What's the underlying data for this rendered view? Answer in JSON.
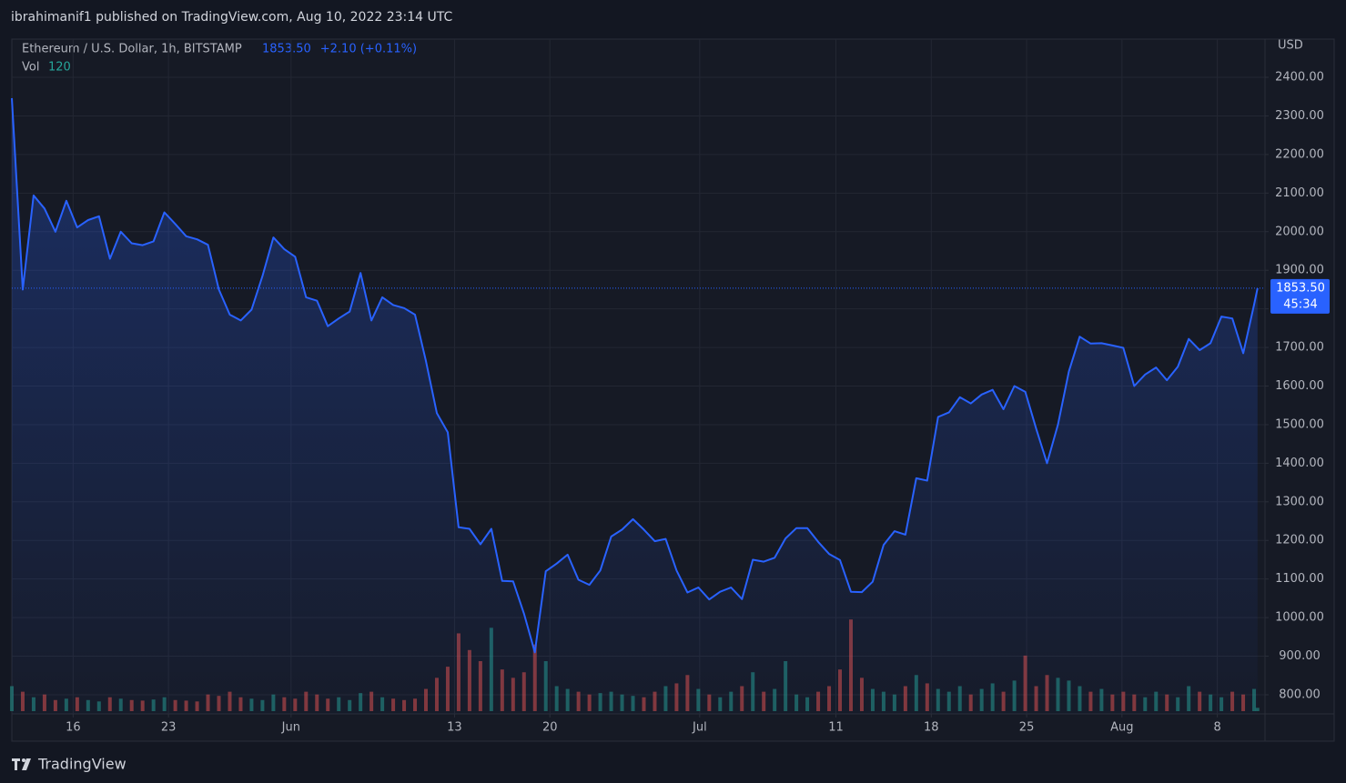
{
  "header": {
    "publisher": "ibrahimanif1 published on TradingView.com, Aug 10, 2022 23:14 UTC"
  },
  "footer": {
    "brand": "TradingView"
  },
  "chart_data": {
    "type": "area",
    "title": "Ethereum / U.S. Dollar, 1h, BITSTAMP",
    "legend_price": "1853.50",
    "legend_change": "+2.10 (+0.11%)",
    "volume_label": "Vol",
    "currency": "USD",
    "last_label": "1853.50",
    "countdown": "45:34",
    "color": "#2962ff",
    "grid": true,
    "x": [
      131.5,
      132.3,
      133.1,
      133.9,
      134.7,
      135.5,
      136.3,
      137.1,
      137.9,
      138.7,
      139.5,
      140.3,
      141.1,
      141.9,
      142.7,
      143.5,
      144.3,
      145.1,
      145.9,
      146.7,
      147.5,
      148.3,
      149.1,
      149.9,
      150.7,
      151.5,
      152.3,
      153.1,
      153.9,
      154.7,
      155.5,
      156.3,
      157.1,
      157.9,
      158.7,
      159.5,
      160.3,
      161.1,
      161.9,
      162.7,
      163.5,
      164.3,
      165.1,
      165.9,
      166.7,
      167.5,
      168.3,
      169.1,
      169.9,
      170.7,
      171.5,
      172.3,
      173.1,
      173.9,
      174.7,
      175.5,
      176.3,
      177.1,
      177.9,
      178.7,
      179.5,
      180.3,
      181.1,
      181.9,
      182.7,
      183.5,
      184.3,
      185.1,
      185.9,
      186.7,
      187.5,
      188.3,
      189.1,
      189.9,
      190.7,
      191.5,
      192.3,
      193.1,
      193.9,
      194.7,
      195.5,
      196.3,
      197.1,
      197.9,
      198.7,
      199.5,
      200.3,
      201.1,
      201.9,
      202.7,
      203.5,
      204.3,
      205.1,
      205.9,
      206.7,
      207.5,
      208.3,
      209.1,
      209.9,
      210.7,
      211.5,
      212.3,
      213.1,
      213.9,
      214.7,
      215.5,
      216.3,
      217.1,
      217.9,
      218.7,
      219.5,
      220.3,
      221.1,
      221.9,
      222.7,
      222.95
    ],
    "values": [
      2346,
      1850,
      2094,
      2060,
      2000,
      2080,
      2011,
      2030,
      2040,
      1930,
      2000,
      1970,
      1965,
      1975,
      2050,
      2020,
      1988,
      1980,
      1966,
      1850,
      1785,
      1770,
      1798,
      1885,
      1985,
      1955,
      1935,
      1830,
      1821,
      1755,
      1775,
      1793,
      1893,
      1770,
      1830,
      1810,
      1802,
      1785,
      1665,
      1530,
      1480,
      1234,
      1230,
      1190,
      1230,
      1095,
      1094,
      1010,
      910,
      1120,
      1140,
      1163,
      1098,
      1085,
      1122,
      1210,
      1228,
      1255,
      1228,
      1198,
      1204,
      1122,
      1065,
      1078,
      1047,
      1067,
      1078,
      1048,
      1150,
      1145,
      1155,
      1205,
      1232,
      1232,
      1196,
      1165,
      1149,
      1067,
      1066,
      1093,
      1188,
      1224,
      1215,
      1361,
      1355,
      1520,
      1532,
      1571,
      1555,
      1578,
      1590,
      1540,
      1600,
      1585,
      1490,
      1400,
      1500,
      1638,
      1728,
      1710,
      1711,
      1705,
      1699,
      1600,
      1630,
      1648,
      1615,
      1650,
      1722,
      1693,
      1711,
      1780,
      1775,
      1685,
      1811,
      1853.5
    ],
    "volume": [
      900,
      700,
      500,
      600,
      400,
      450,
      500,
      400,
      350,
      500,
      450,
      400,
      380,
      420,
      500,
      400,
      380,
      350,
      600,
      550,
      700,
      500,
      450,
      400,
      600,
      500,
      450,
      700,
      600,
      450,
      500,
      400,
      650,
      700,
      500,
      450,
      400,
      450,
      800,
      1200,
      1600,
      2800,
      2200,
      1800,
      3000,
      1500,
      1200,
      1400,
      2400,
      1800,
      900,
      800,
      700,
      600,
      650,
      700,
      600,
      550,
      500,
      700,
      900,
      1000,
      1300,
      800,
      600,
      500,
      700,
      900,
      1400,
      700,
      800,
      1800,
      600,
      500,
      700,
      900,
      1500,
      3300,
      1200,
      800,
      700,
      600,
      900,
      1300,
      1000,
      800,
      700,
      900,
      600,
      800,
      1000,
      700,
      1100,
      2000,
      900,
      1300,
      1200,
      1100,
      900,
      700,
      800,
      600,
      700,
      600,
      500,
      700,
      600,
      500,
      900,
      700,
      600,
      500,
      700,
      600,
      800,
      120
    ],
    "volume_lim": [
      0,
      3600
    ],
    "xlim": [
      131.5,
      223.5
    ],
    "xticks": [
      {
        "value": 136,
        "label": "16"
      },
      {
        "value": 143,
        "label": "23"
      },
      {
        "value": 152,
        "label": "Jun"
      },
      {
        "value": 164,
        "label": "13"
      },
      {
        "value": 171,
        "label": "20"
      },
      {
        "value": 182,
        "label": "Jul"
      },
      {
        "value": 192,
        "label": "11"
      },
      {
        "value": 199,
        "label": "18"
      },
      {
        "value": 206,
        "label": "25"
      },
      {
        "value": 213,
        "label": "Aug"
      },
      {
        "value": 220,
        "label": "8"
      }
    ],
    "ylim": [
      750.5,
      2499
    ],
    "yticks": [
      {
        "value": 800,
        "label": "800.00"
      },
      {
        "value": 900,
        "label": "900.00"
      },
      {
        "value": 1000,
        "label": "1000.00"
      },
      {
        "value": 1100,
        "label": "1100.00"
      },
      {
        "value": 1200,
        "label": "1200.00"
      },
      {
        "value": 1300,
        "label": "1300.00"
      },
      {
        "value": 1400,
        "label": "1400.00"
      },
      {
        "value": 1500,
        "label": "1500.00"
      },
      {
        "value": 1600,
        "label": "1600.00"
      },
      {
        "value": 1700,
        "label": "1700.00"
      },
      {
        "value": 1800,
        "label": "1800.00"
      },
      {
        "value": 1900,
        "label": "1900.00"
      },
      {
        "value": 2000,
        "label": "2000.00"
      },
      {
        "value": 2100,
        "label": "2100.00"
      },
      {
        "value": 2200,
        "label": "2200.00"
      },
      {
        "value": 2300,
        "label": "2300.00"
      },
      {
        "value": 2400,
        "label": "2400.00"
      }
    ]
  }
}
